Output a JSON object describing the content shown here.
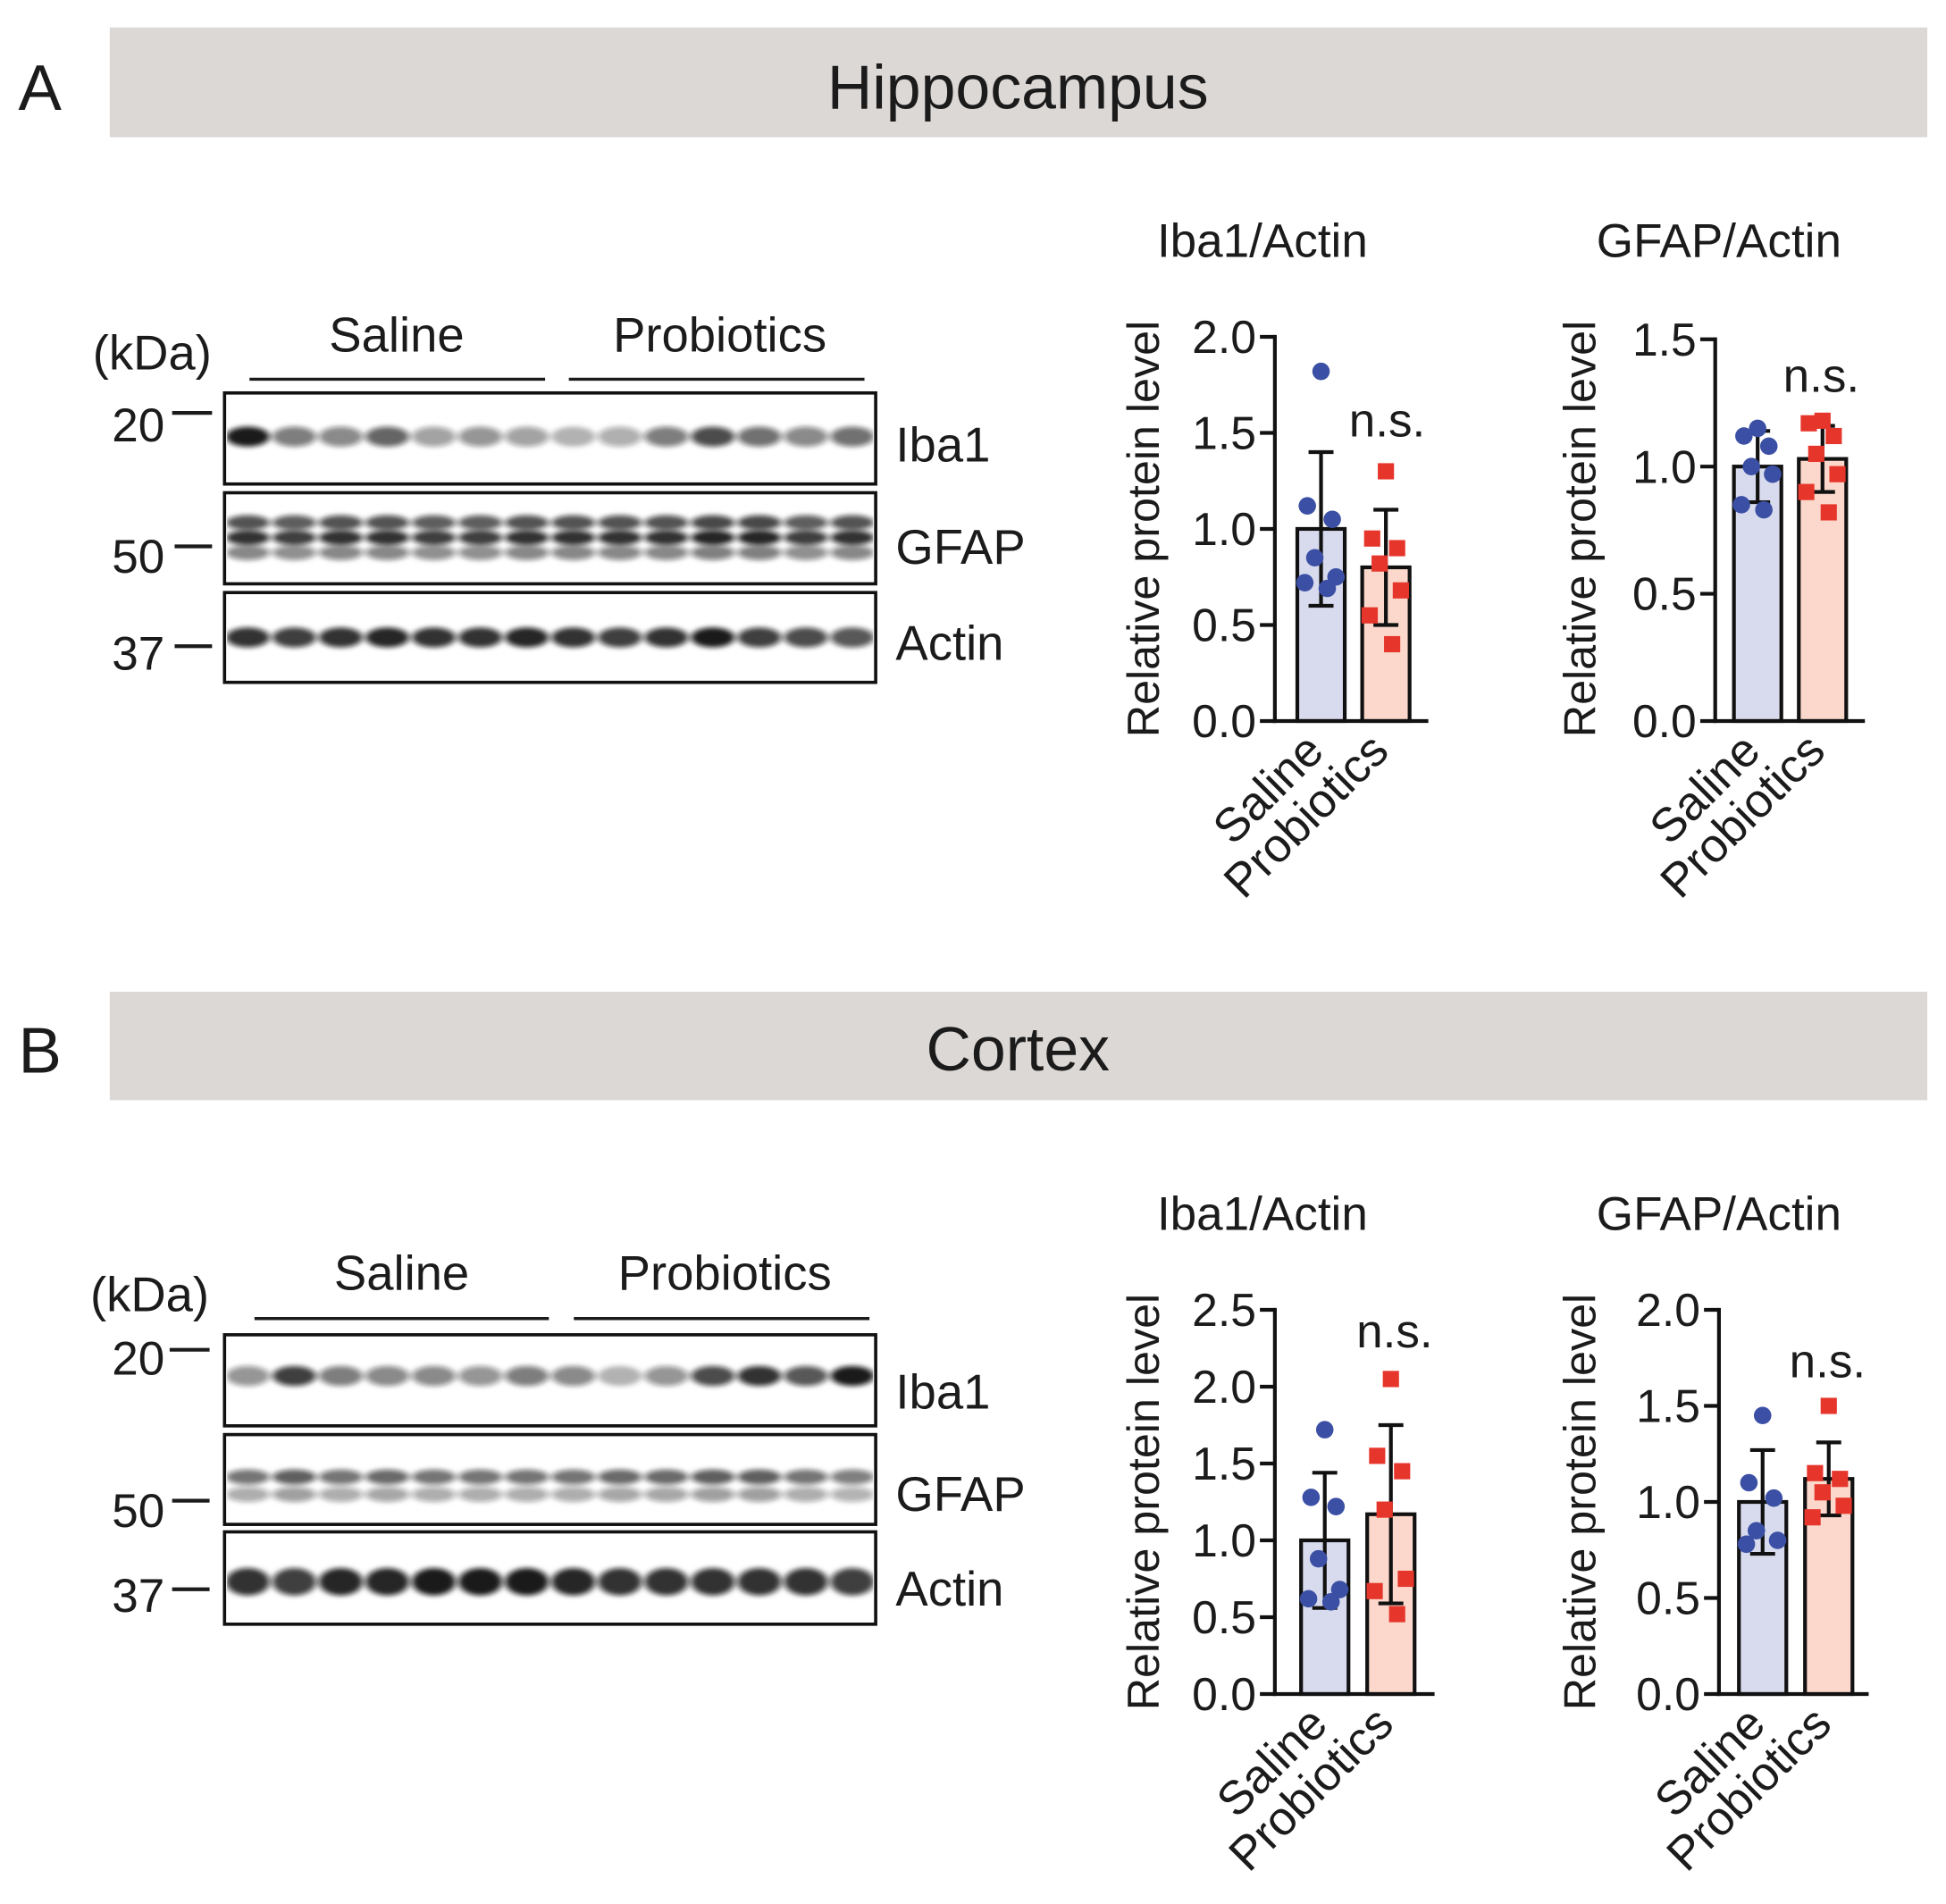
{
  "panels": [
    {
      "letter": "A",
      "region": "Hippocampus",
      "blot": {
        "unit": "(kDa)",
        "groups": [
          "Saline",
          "Probiotics"
        ],
        "markers": [
          "20",
          "50",
          "37"
        ],
        "rows": [
          {
            "protein": "Iba1",
            "intensity": [
              0.95,
              0.55,
              0.5,
              0.65,
              0.4,
              0.45,
              0.4,
              0.3,
              0.35,
              0.55,
              0.75,
              0.6,
              0.5,
              0.6
            ]
          },
          {
            "protein": "GFAP",
            "intensity": [
              0.85,
              0.8,
              0.85,
              0.85,
              0.8,
              0.8,
              0.85,
              0.85,
              0.85,
              0.85,
              0.9,
              0.9,
              0.8,
              0.85
            ]
          },
          {
            "protein": "Actin",
            "intensity": [
              0.85,
              0.8,
              0.85,
              0.9,
              0.85,
              0.85,
              0.9,
              0.85,
              0.8,
              0.85,
              0.95,
              0.8,
              0.75,
              0.7
            ]
          }
        ]
      }
    },
    {
      "letter": "B",
      "region": "Cortex",
      "blot": {
        "unit": "(kDa)",
        "groups": [
          "Saline",
          "Probiotics"
        ],
        "markers": [
          "20",
          "50",
          "37"
        ],
        "rows": [
          {
            "protein": "Iba1",
            "intensity": [
              0.45,
              0.8,
              0.55,
              0.5,
              0.5,
              0.45,
              0.55,
              0.5,
              0.3,
              0.45,
              0.75,
              0.85,
              0.7,
              0.95
            ]
          },
          {
            "protein": "GFAP",
            "intensity": [
              0.65,
              0.75,
              0.65,
              0.7,
              0.65,
              0.65,
              0.65,
              0.65,
              0.7,
              0.7,
              0.75,
              0.75,
              0.65,
              0.6
            ]
          },
          {
            "protein": "Actin",
            "intensity": [
              0.85,
              0.8,
              0.9,
              0.9,
              0.95,
              0.95,
              0.95,
              0.9,
              0.85,
              0.85,
              0.85,
              0.85,
              0.85,
              0.8
            ]
          }
        ]
      }
    }
  ],
  "chart_data": [
    {
      "panel": "A",
      "type": "bar",
      "title": "Iba1/Actin",
      "xlabel": "",
      "ylabel": "Relative protein level",
      "categories": [
        "Saline",
        "Probiotics"
      ],
      "values": [
        1.0,
        0.8
      ],
      "error": [
        0.4,
        0.3
      ],
      "points": [
        [
          1.82,
          1.12,
          1.05,
          0.85,
          0.75,
          0.72,
          0.69
        ],
        [
          1.3,
          0.95,
          0.9,
          0.82,
          0.68,
          0.55,
          0.4
        ]
      ],
      "ylim": [
        0,
        2.0
      ],
      "yticks": [
        "0.0",
        "0.5",
        "1.0",
        "1.5",
        "2.0"
      ],
      "annotation": "n.s.",
      "colors": {
        "bar_fill": [
          "#d8dbee",
          "#fbd8cb"
        ],
        "points": [
          "#3b4fa4",
          "#e6362c"
        ]
      },
      "markers": [
        "circle",
        "square"
      ]
    },
    {
      "panel": "A",
      "type": "bar",
      "title": "GFAP/Actin",
      "xlabel": "",
      "ylabel": "Relative protein level",
      "categories": [
        "Saline",
        "Probiotics"
      ],
      "values": [
        1.0,
        1.03
      ],
      "error": [
        0.14,
        0.13
      ],
      "points": [
        [
          1.15,
          1.12,
          1.08,
          1.0,
          0.97,
          0.85,
          0.83
        ],
        [
          1.18,
          1.17,
          1.12,
          1.05,
          0.97,
          0.9,
          0.82
        ]
      ],
      "ylim": [
        0,
        1.5
      ],
      "yticks": [
        "0.0",
        "0.5",
        "1.0",
        "1.5"
      ],
      "annotation": "n.s.",
      "colors": {
        "bar_fill": [
          "#d8dbee",
          "#fbd8cb"
        ],
        "points": [
          "#3b4fa4",
          "#e6362c"
        ]
      },
      "markers": [
        "circle",
        "square"
      ]
    },
    {
      "panel": "B",
      "type": "bar",
      "title": "Iba1/Actin",
      "xlabel": "",
      "ylabel": "Relative protein level",
      "categories": [
        "Saline",
        "Probiotics"
      ],
      "values": [
        1.0,
        1.17
      ],
      "error": [
        0.44,
        0.58
      ],
      "points": [
        [
          1.72,
          1.28,
          1.22,
          0.88,
          0.68,
          0.62,
          0.6
        ],
        [
          2.05,
          1.55,
          1.45,
          1.2,
          0.75,
          0.67,
          0.52
        ]
      ],
      "ylim": [
        0,
        2.5
      ],
      "yticks": [
        "0.0",
        "0.5",
        "1.0",
        "1.5",
        "2.0",
        "2.5"
      ],
      "annotation": "n.s.",
      "colors": {
        "bar_fill": [
          "#d8dbee",
          "#fbd8cb"
        ],
        "points": [
          "#3b4fa4",
          "#e6362c"
        ]
      },
      "markers": [
        "circle",
        "square"
      ]
    },
    {
      "panel": "B",
      "type": "bar",
      "title": "GFAP/Actin",
      "xlabel": "",
      "ylabel": "Relative protein level",
      "categories": [
        "Saline",
        "Probiotics"
      ],
      "values": [
        1.0,
        1.12
      ],
      "error": [
        0.27,
        0.19
      ],
      "points": [
        [
          1.45,
          1.1,
          1.02,
          0.85,
          0.8,
          0.78
        ],
        [
          1.5,
          1.15,
          1.12,
          1.05,
          0.98,
          0.92
        ]
      ],
      "ylim": [
        0,
        2.0
      ],
      "yticks": [
        "0.0",
        "0.5",
        "1.0",
        "1.5",
        "2.0"
      ],
      "annotation": "n.s.",
      "colors": {
        "bar_fill": [
          "#d8dbee",
          "#fbd8cb"
        ],
        "points": [
          "#3b4fa4",
          "#e6362c"
        ]
      },
      "markers": [
        "circle",
        "square"
      ]
    }
  ]
}
